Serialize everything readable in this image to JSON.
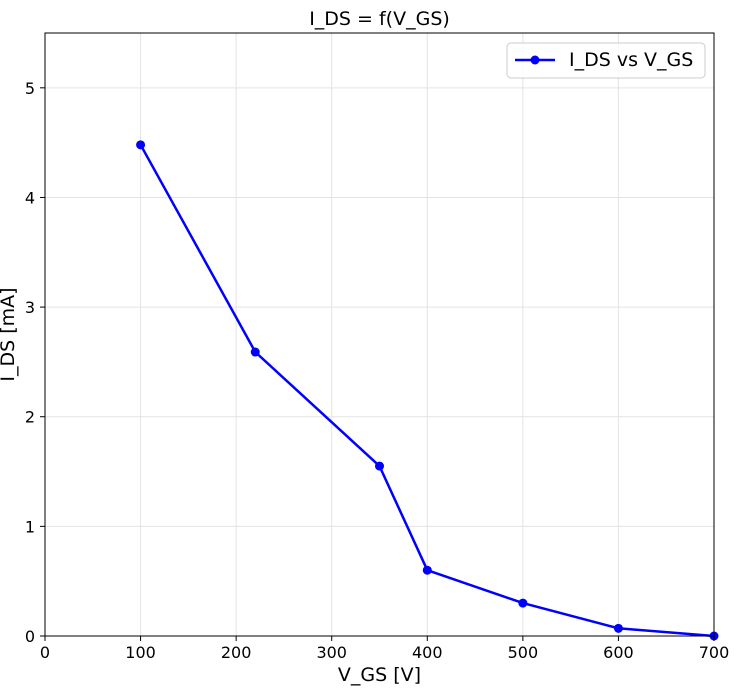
{
  "chart_data": {
    "type": "line",
    "title": "I_DS = f(V_GS)",
    "xlabel": "V_GS [V]",
    "ylabel": "I_DS [mA]",
    "xlim": [
      0,
      700
    ],
    "ylim": [
      0,
      5.5
    ],
    "xticks": [
      0,
      100,
      200,
      300,
      400,
      500,
      600,
      700
    ],
    "yticks": [
      0,
      1,
      2,
      3,
      4,
      5
    ],
    "grid": true,
    "legend_position": "top-right",
    "series": [
      {
        "name": "I_DS vs V_GS",
        "color": "#0000ff",
        "marker": "circle",
        "x": [
          100,
          220,
          350,
          400,
          500,
          600,
          700
        ],
        "y": [
          4.48,
          2.59,
          1.55,
          0.6,
          0.3,
          0.07,
          0.0
        ]
      }
    ]
  }
}
